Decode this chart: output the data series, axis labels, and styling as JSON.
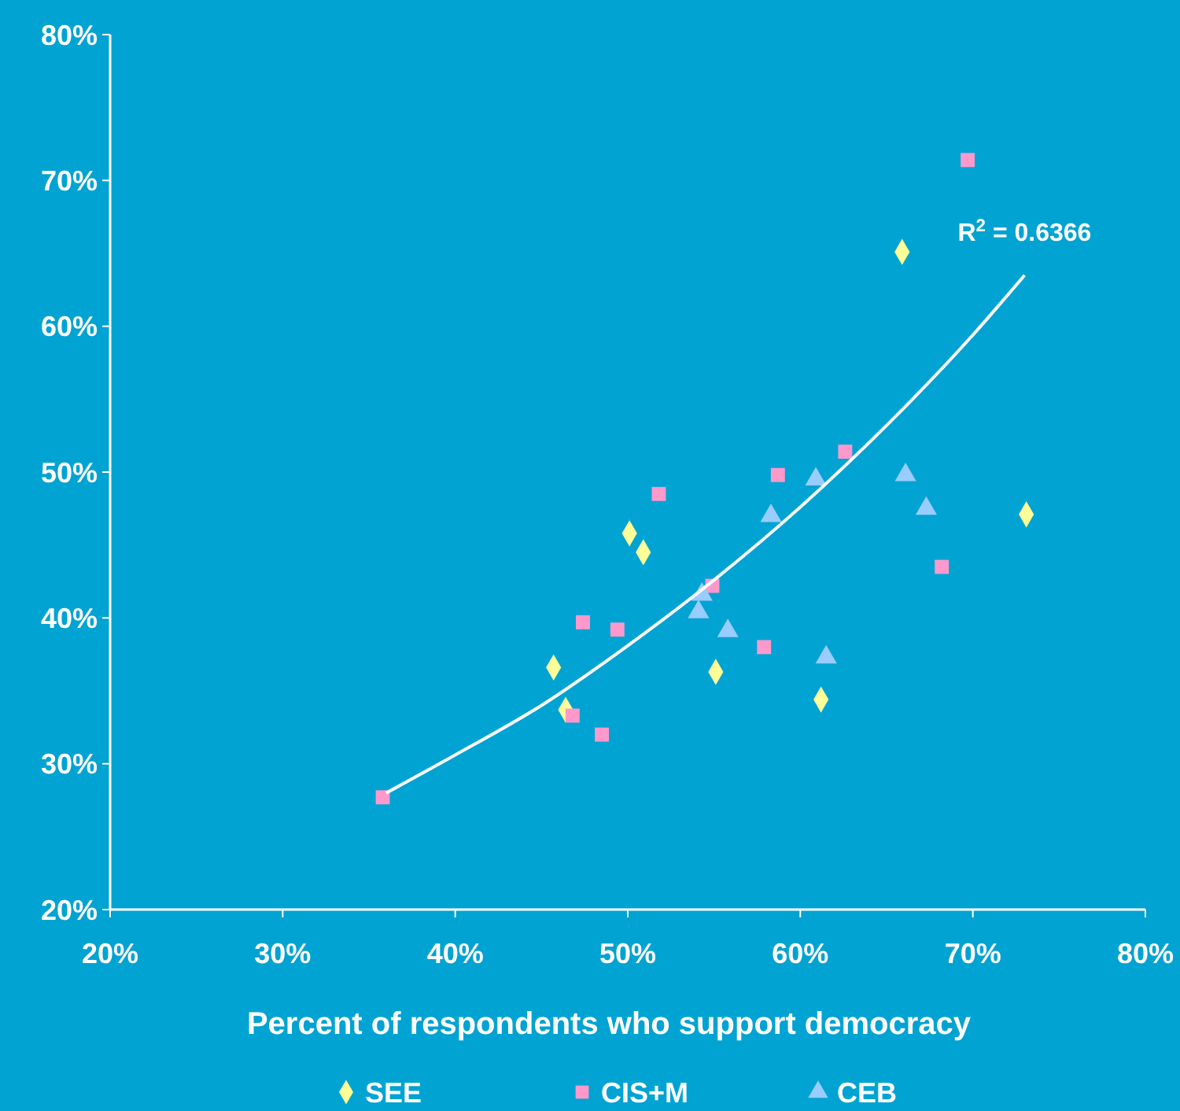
{
  "chart_data": {
    "type": "scatter",
    "xlabel": "Percent of respondents who support democracy",
    "xlim": [
      20,
      80
    ],
    "ylim": [
      20,
      80
    ],
    "xticks": [
      {
        "value": 20,
        "label": "20%"
      },
      {
        "value": 30,
        "label": "30%"
      },
      {
        "value": 40,
        "label": "40%"
      },
      {
        "value": 50,
        "label": "50%"
      },
      {
        "value": 60,
        "label": "60%"
      },
      {
        "value": 70,
        "label": "70%"
      },
      {
        "value": 80,
        "label": "80%"
      }
    ],
    "yticks": [
      {
        "value": 20,
        "label": "20%"
      },
      {
        "value": 30,
        "label": "30%"
      },
      {
        "value": 40,
        "label": "40%"
      },
      {
        "value": 50,
        "label": "50%"
      },
      {
        "value": 60,
        "label": "60%"
      },
      {
        "value": 70,
        "label": "70%"
      },
      {
        "value": 80,
        "label": "80%"
      }
    ],
    "grid": false,
    "legend": "bottom",
    "annotations": [
      "R$^{2}$ = 0.6366"
    ],
    "series": [
      {
        "name": "SEE",
        "color": "#ffff99",
        "marker": "diamond",
        "x": [
          65.9,
          50.1,
          50.9,
          45.7,
          46.4,
          55.1,
          61.2,
          73.1
        ],
        "values": [
          65.1,
          45.8,
          44.5,
          36.6,
          33.7,
          36.3,
          34.4,
          47.1
        ]
      },
      {
        "name": "CIS+M",
        "color": "#ff99cc",
        "marker": "square",
        "x": [
          69.7,
          51.8,
          58.7,
          62.6,
          54.9,
          47.4,
          49.4,
          57.9,
          68.2,
          46.8,
          48.5,
          35.8
        ],
        "values": [
          71.4,
          48.5,
          49.8,
          51.4,
          42.2,
          39.7,
          39.2,
          38.0,
          43.5,
          33.3,
          32.0,
          27.7
        ]
      },
      {
        "name": "CEB",
        "color": "#99ccff",
        "marker": "triangle",
        "x": [
          60.9,
          58.3,
          66.1,
          67.3,
          54.3,
          54.1,
          55.8,
          61.5
        ],
        "values": [
          49.5,
          47.0,
          49.8,
          47.5,
          41.6,
          40.4,
          39.1,
          37.3
        ]
      },
      {
        "type": "line",
        "color": "#ffffff",
        "marker": "none",
        "x": [
          36,
          40,
          45,
          50,
          55,
          60,
          65,
          70,
          73
        ],
        "values": [
          28.0,
          30.6,
          34.0,
          38.1,
          42.6,
          47.6,
          53.2,
          59.4,
          63.5
        ]
      }
    ]
  }
}
